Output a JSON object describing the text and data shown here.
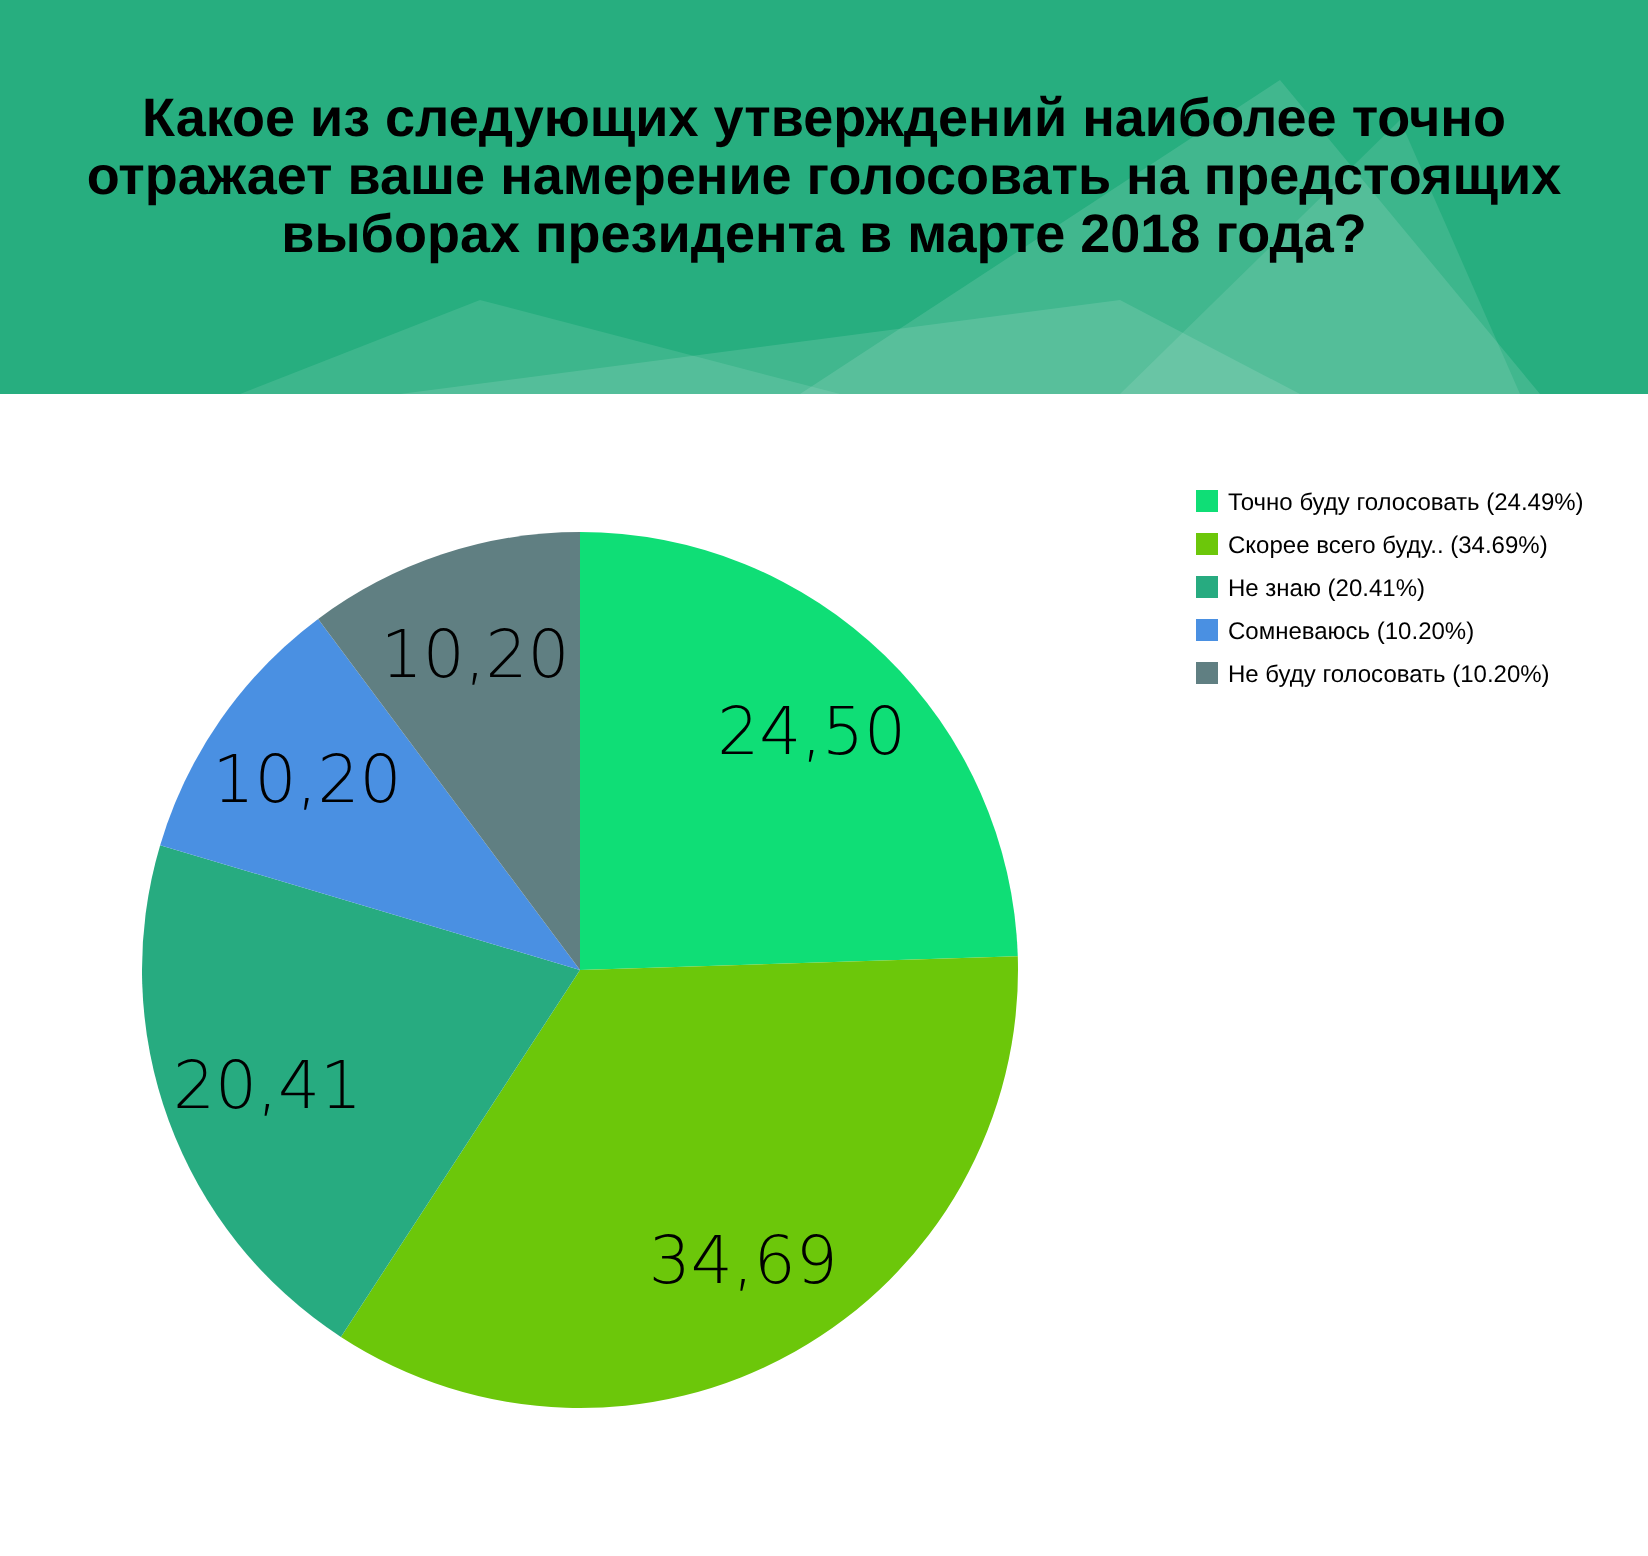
{
  "chart_data": {
    "type": "pie",
    "title": "Какое из следующих утверждений наиболее точно отражает ваше намерение голосовать на предстоящих выборах президента в марте 2018 года?",
    "categories": [
      "Точно буду голосовать (24.49%)",
      "Скорее всего буду.. (34.69%)",
      "Не знаю (20.41%)",
      "Сомневаюсь (10.20%)",
      "Не буду голосовать (10.20%)"
    ],
    "values": [
      24.5,
      34.69,
      20.41,
      10.2,
      10.2
    ],
    "value_labels": [
      "24,50",
      "34,69",
      "20,41",
      "10,20",
      "10,20"
    ],
    "colors": [
      "#0fde76",
      "#6cc70a",
      "#27ab80",
      "#4a90e2",
      "#607f82"
    ],
    "legend": "top right"
  }
}
